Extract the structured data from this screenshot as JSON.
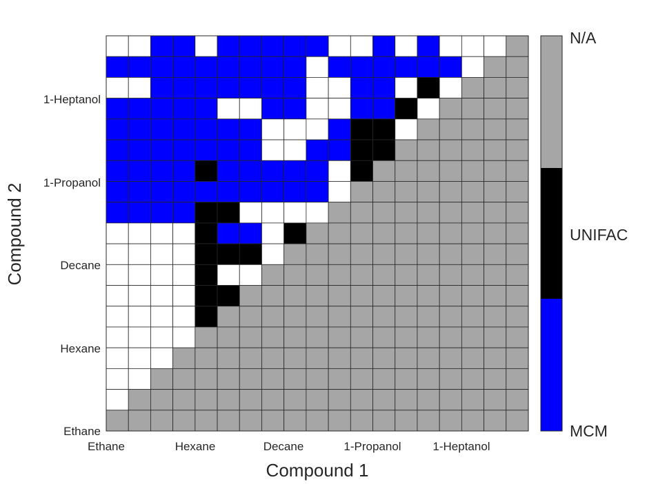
{
  "chart_data": {
    "type": "heatmap",
    "title": "",
    "xlabel": "Compound 1",
    "ylabel": "Compound 2",
    "x_ticks": [
      "Ethane",
      "Hexane",
      "Decane",
      "1-Propanol",
      "1-Heptanol"
    ],
    "y_ticks": [
      "Ethane",
      "Hexane",
      "Decane",
      "1-Propanol",
      "1-Heptanol"
    ],
    "grid": true,
    "legend": {
      "type": "colorbar",
      "placement": "right",
      "entries": [
        {
          "label": "N/A",
          "code": "N",
          "color": "#a6a6a6"
        },
        {
          "label": "UNIFAC",
          "code": "U",
          "color": "#000000"
        },
        {
          "label": "MCM",
          "code": "B",
          "color": "#0000ff"
        }
      ],
      "no_data_code": "W",
      "no_data_color": "#ffffff"
    },
    "n_columns": 19,
    "n_rows": 19,
    "row_order": "top-to-bottom",
    "rows": [
      "WWBBWBBBBBWWBWBWWWN",
      "BBBBBBBBBWBBBBBBWNN",
      "WWBBBBBBBWWBBWUWNNN",
      "BBBBBWWBBWWBBUWNNNN",
      "BBBBBBBWWWBUUWNNNNN",
      "BBBBBBBWWBBUUNNNNNN",
      "BBBBUBBBBBWUNNNNNNN",
      "BBBBBBBBBBWNNNNNNNN",
      "BBBBUUWWWWNNNNNNNNN",
      "WWWWUBBWUNNNNNNNNNN",
      "WWWWUUUWNNNNNNNNNNN",
      "WWWWUWWNNNNNNNNNNNN",
      "WWWWUUNNNNNNNNNNNNN",
      "WWWWUNNNNNNNNNNNNNN",
      "WWWWNNNNNNNNNNNNNNN",
      "WWWNNNNNNNNNNNNNNNN",
      "WWNNNNNNNNNNNNNNNNN",
      "WNNNNNNNNNNNNNNNNNN",
      "NNNNNNNNNNNNNNNNNNN"
    ]
  }
}
